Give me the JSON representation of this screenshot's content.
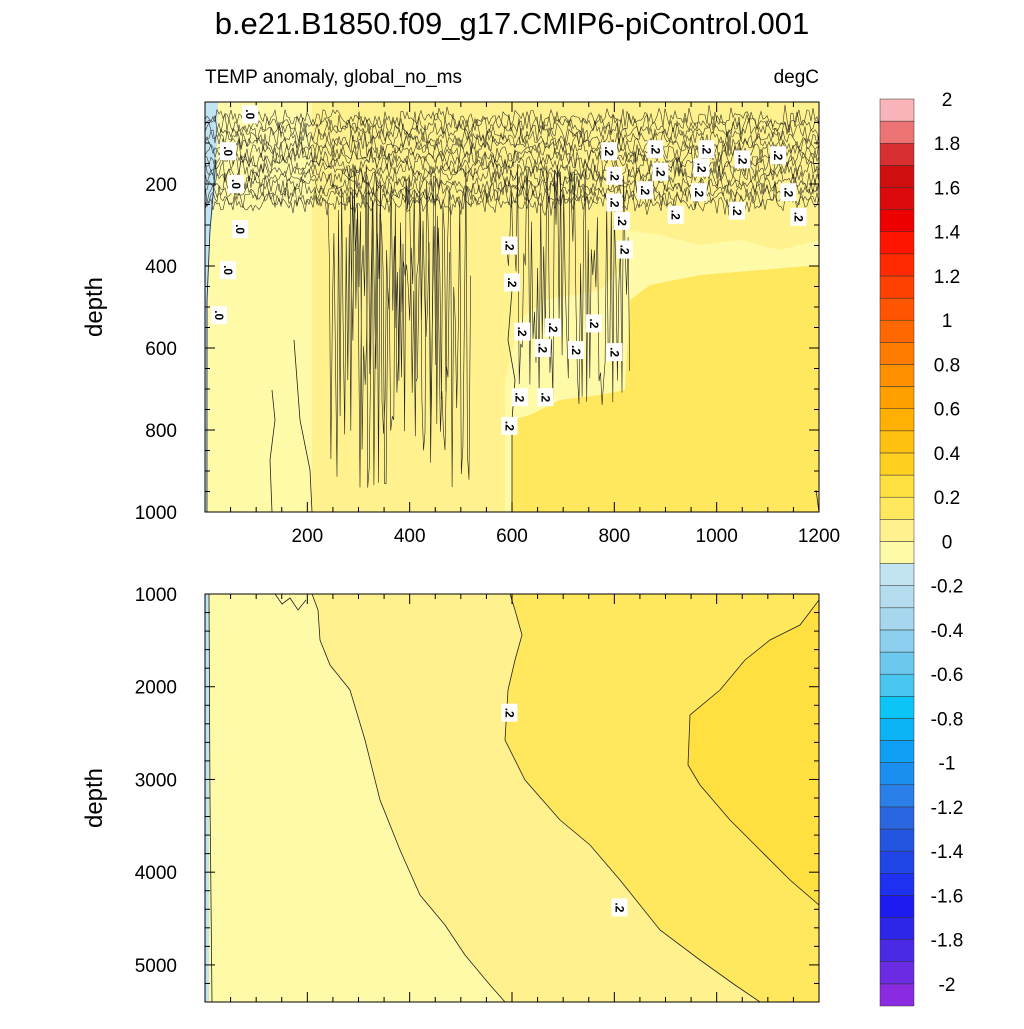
{
  "chart_data": {
    "type": "contour",
    "title": "b.e21.B1850.f09_g17.CMIP6-piControl.001",
    "variable_label": "TEMP anomaly, global_no_ms",
    "units": "degC",
    "x_ticks": [
      "200",
      "400",
      "600",
      "800",
      "1000",
      "1200"
    ],
    "xlim": [
      0,
      1200
    ],
    "contour_labels": {
      "zero": ".0",
      "point_two": ".2"
    },
    "colorbar": {
      "levels": [
        -2.0,
        -1.9,
        -1.8,
        -1.7,
        -1.6,
        -1.5,
        -1.4,
        -1.3,
        -1.2,
        -1.1,
        -1.0,
        -0.9,
        -0.8,
        -0.7,
        -0.6,
        -0.5,
        -0.4,
        -0.3,
        -0.2,
        -0.1,
        0.0,
        0.1,
        0.2,
        0.3,
        0.4,
        0.5,
        0.6,
        0.7,
        0.8,
        0.9,
        1.0,
        1.1,
        1.2,
        1.3,
        1.4,
        1.5,
        1.6,
        1.7,
        1.8,
        1.9,
        2.0,
        2.1
      ],
      "tick_labels": [
        "-2",
        "-1.8",
        "-1.6",
        "-1.4",
        "-1.2",
        "-1",
        "-0.8",
        "-0.6",
        "-0.4",
        "-0.2",
        "0",
        "0.2",
        "0.4",
        "0.6",
        "0.8",
        "1",
        "1.2",
        "1.4",
        "1.6",
        "1.8",
        "2"
      ],
      "colors": [
        "#8a2be2",
        "#6a2be2",
        "#4b2ae6",
        "#2e25ea",
        "#1c1cf0",
        "#1e30f0",
        "#2046e8",
        "#2455e0",
        "#2a66e0",
        "#2b7fe8",
        "#1a8ff0",
        "#0fa0f5",
        "#0bb4f5",
        "#0cc4f5",
        "#48c6ef",
        "#6cc8ee",
        "#8ccfee",
        "#a6d7ee",
        "#b4dcee",
        "#c2e4f2",
        "#fffaa8",
        "#fff28e",
        "#ffe85e",
        "#ffe040",
        "#ffd020",
        "#ffc010",
        "#ffb000",
        "#ffa000",
        "#ff9000",
        "#ff7c00",
        "#ff6800",
        "#ff5400",
        "#ff4000",
        "#ff2a00",
        "#ff1400",
        "#ee0000",
        "#dc0a0a",
        "#d01010",
        "#d83030",
        "#ec7474",
        "#f8b4b8"
      ]
    },
    "panels": [
      {
        "name": "upper",
        "ylabel": "depth",
        "y_ticks": [
          "200",
          "400",
          "600",
          "800",
          "1000"
        ],
        "ylim": [
          0,
          1000
        ],
        "contour_zero_label_depths": [
          30,
          120,
          200,
          310,
          410,
          520
        ],
        "contour_point2_label_positions": [
          [
            595,
            350
          ],
          [
            600,
            440
          ],
          [
            620,
            560
          ],
          [
            680,
            550
          ],
          [
            760,
            540
          ],
          [
            660,
            600
          ],
          [
            725,
            605
          ],
          [
            800,
            610
          ],
          [
            595,
            790
          ],
          [
            615,
            720
          ],
          [
            665,
            720
          ],
          [
            790,
            120
          ],
          [
            800,
            180
          ],
          [
            800,
            245
          ],
          [
            815,
            290
          ],
          [
            820,
            360
          ],
          [
            880,
            115
          ],
          [
            890,
            170
          ],
          [
            860,
            215
          ],
          [
            920,
            275
          ],
          [
            980,
            115
          ],
          [
            970,
            160
          ],
          [
            965,
            220
          ],
          [
            1050,
            140
          ],
          [
            1040,
            265
          ],
          [
            1120,
            130
          ],
          [
            1140,
            220
          ],
          [
            1160,
            280
          ]
        ]
      },
      {
        "name": "lower",
        "ylabel": "depth",
        "y_ticks": [
          "1000",
          "2000",
          "3000",
          "4000",
          "5000"
        ],
        "ylim": [
          1000,
          5400
        ],
        "contour_point2_label_positions": [
          [
            595,
            2280
          ],
          [
            810,
            4380
          ]
        ]
      }
    ]
  }
}
